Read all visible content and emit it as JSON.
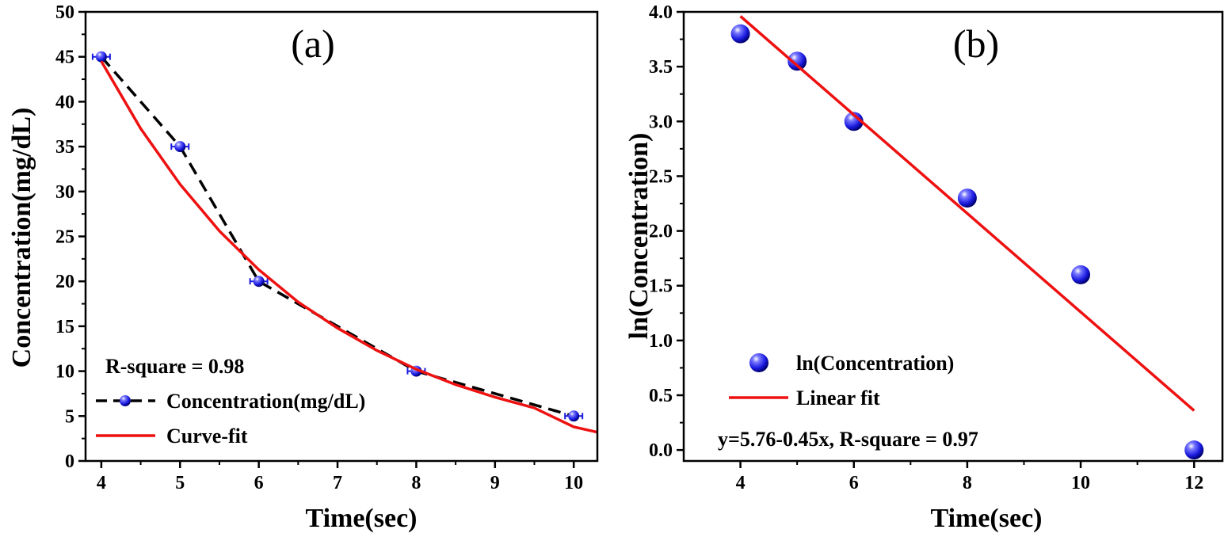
{
  "chart_data": [
    {
      "type": "scatter",
      "panel_label": "(a)",
      "xlabel": "Time(sec)",
      "ylabel": "Concentration(mg/dL)",
      "xlim": [
        3.8,
        10.3
      ],
      "ylim": [
        0,
        50
      ],
      "xticks": [
        4,
        5,
        6,
        7,
        8,
        9,
        10
      ],
      "yticks": [
        0,
        5,
        10,
        15,
        20,
        25,
        30,
        35,
        40,
        45,
        50
      ],
      "annotation": "R-square = 0.98",
      "legend_position": "bottom-left",
      "series": [
        {
          "name": "Concentration(mg/dL)",
          "style": "dashed line with markers and error bars",
          "color": "#000000",
          "marker_color": "#2a2ae8",
          "x": [
            4,
            5,
            6,
            8,
            10
          ],
          "y": [
            45,
            35,
            20,
            10,
            5
          ]
        },
        {
          "name": "Curve-fit",
          "style": "solid line",
          "color": "#ee1111",
          "x": [
            4,
            4.5,
            5,
            5.5,
            6,
            6.5,
            7,
            7.5,
            8,
            8.5,
            9,
            9.5,
            10,
            10.3
          ],
          "y": [
            44.5,
            37.0,
            30.8,
            25.6,
            21.3,
            17.7,
            14.8,
            12.3,
            10.2,
            8.5,
            7.1,
            5.9,
            3.8,
            3.2
          ]
        }
      ]
    },
    {
      "type": "scatter",
      "panel_label": "(b)",
      "xlabel": "Time(sec)",
      "ylabel": "ln(Concentration)",
      "xlim": [
        3.0,
        12.5
      ],
      "ylim": [
        -0.1,
        4.0
      ],
      "xticks": [
        4,
        6,
        8,
        10,
        12
      ],
      "yticks": [
        0.0,
        0.5,
        1.0,
        1.5,
        2.0,
        2.5,
        3.0,
        3.5,
        4.0
      ],
      "ytick_labels": [
        "0.0",
        "0.5",
        "1.0",
        "1.5",
        "2.0",
        "2.5",
        "3.0",
        "3.5",
        "4.0"
      ],
      "annotation": "y=5.76-0.45x, R-square = 0.97",
      "legend_position": "bottom-left",
      "series": [
        {
          "name": "ln(Concentration)",
          "style": "markers",
          "marker_color": "#2a2ae8",
          "x": [
            4,
            5,
            6,
            8,
            10,
            12
          ],
          "y": [
            3.8,
            3.55,
            3.0,
            2.3,
            1.6,
            0.0
          ]
        },
        {
          "name": "Linear fit",
          "style": "solid line",
          "color": "#ee1111",
          "x": [
            4,
            12
          ],
          "y": [
            3.96,
            0.36
          ]
        }
      ]
    }
  ]
}
